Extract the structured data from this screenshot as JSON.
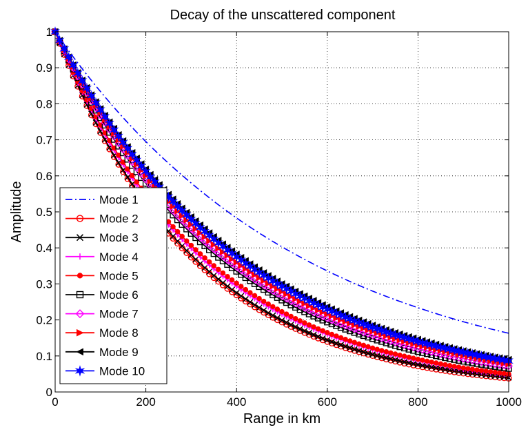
{
  "chart_data": {
    "type": "line",
    "title": "Decay of the unscattered component",
    "xlabel": "Range in km",
    "ylabel": "Amplitude",
    "xlim": [
      0,
      1000
    ],
    "ylim": [
      0,
      1
    ],
    "xticks": [
      0,
      200,
      400,
      600,
      800,
      1000
    ],
    "yticks": [
      0,
      0.1,
      0.2,
      0.3,
      0.4,
      0.5,
      0.6,
      0.7,
      0.8,
      0.9,
      1
    ],
    "xtick_labels": [
      "0",
      "200",
      "400",
      "600",
      "800",
      "1000"
    ],
    "ytick_labels": [
      "0",
      "0.1",
      "0.2",
      "0.3",
      "0.4",
      "0.5",
      "0.6",
      "0.7",
      "0.8",
      "0.9",
      "1"
    ],
    "grid": true,
    "legend_position": "lower-left",
    "x": [
      0,
      100,
      200,
      300,
      400,
      500,
      600,
      700,
      800,
      900,
      1000
    ],
    "series": [
      {
        "name": "Mode 1",
        "color": "#0000ff",
        "line": "dashdot",
        "marker": "none",
        "values": [
          1.0,
          0.834,
          0.695,
          0.58,
          0.483,
          0.403,
          0.336,
          0.28,
          0.234,
          0.195,
          0.163
        ]
      },
      {
        "name": "Mode 2",
        "color": "#ff0000",
        "line": "solid",
        "marker": "circle",
        "values": [
          1.0,
          0.72,
          0.519,
          0.374,
          0.269,
          0.194,
          0.14,
          0.101,
          0.072,
          0.052,
          0.038
        ]
      },
      {
        "name": "Mode 3",
        "color": "#000000",
        "line": "solid",
        "marker": "x",
        "values": [
          1.0,
          0.724,
          0.524,
          0.38,
          0.275,
          0.199,
          0.144,
          0.104,
          0.076,
          0.055,
          0.04
        ]
      },
      {
        "name": "Mode 4",
        "color": "#ff00ff",
        "line": "solid",
        "marker": "plus",
        "values": [
          1.0,
          0.736,
          0.541,
          0.398,
          0.293,
          0.216,
          0.159,
          0.117,
          0.086,
          0.063,
          0.047
        ]
      },
      {
        "name": "Mode 5",
        "color": "#ff0000",
        "line": "solid",
        "marker": "dot",
        "values": [
          1.0,
          0.741,
          0.549,
          0.407,
          0.302,
          0.223,
          0.165,
          0.122,
          0.091,
          0.067,
          0.05
        ]
      },
      {
        "name": "Mode 6",
        "color": "#000000",
        "line": "solid",
        "marker": "square",
        "values": [
          1.0,
          0.761,
          0.579,
          0.44,
          0.335,
          0.255,
          0.194,
          0.148,
          0.112,
          0.085,
          0.065
        ]
      },
      {
        "name": "Mode 7",
        "color": "#ff00ff",
        "line": "solid",
        "marker": "diamond",
        "values": [
          1.0,
          0.768,
          0.59,
          0.453,
          0.348,
          0.267,
          0.205,
          0.158,
          0.121,
          0.093,
          0.072
        ]
      },
      {
        "name": "Mode 8",
        "color": "#ff0000",
        "line": "solid",
        "marker": "triangle-right",
        "values": [
          1.0,
          0.775,
          0.6,
          0.465,
          0.36,
          0.279,
          0.216,
          0.168,
          0.13,
          0.101,
          0.078
        ]
      },
      {
        "name": "Mode 9",
        "color": "#000000",
        "line": "solid",
        "marker": "triangle-left",
        "values": [
          1.0,
          0.787,
          0.619,
          0.487,
          0.383,
          0.301,
          0.237,
          0.186,
          0.147,
          0.115,
          0.091
        ]
      },
      {
        "name": "Mode 10",
        "color": "#0000ff",
        "line": "solid",
        "marker": "hexagram",
        "values": [
          1.0,
          0.783,
          0.612,
          0.479,
          0.375,
          0.293,
          0.229,
          0.179,
          0.14,
          0.11,
          0.086
        ]
      }
    ]
  }
}
